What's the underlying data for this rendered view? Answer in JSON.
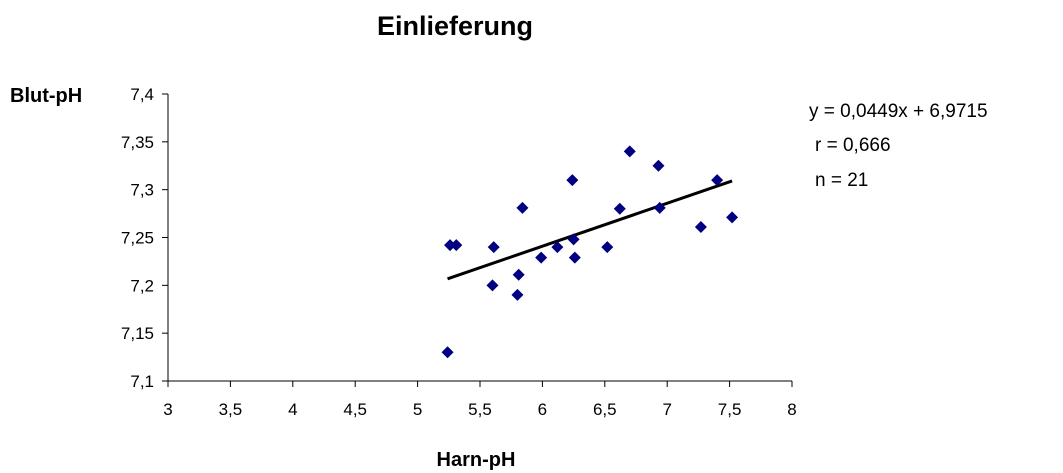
{
  "chart_data": {
    "type": "scatter",
    "title": "Einlieferung",
    "xlabel": "Harn-pH",
    "ylabel": "Blut-pH",
    "xlim": [
      3,
      8
    ],
    "ylim": [
      7.1,
      7.4
    ],
    "x_ticks": [
      "3",
      "3,5",
      "4",
      "4,5",
      "5",
      "5,5",
      "6",
      "6,5",
      "7",
      "7,5",
      "8"
    ],
    "y_ticks": [
      "7,1",
      "7,15",
      "7,2",
      "7,25",
      "7,3",
      "7,35",
      "7,4"
    ],
    "grid": false,
    "legend": "none",
    "marker": "diamond",
    "marker_color": "#000080",
    "series": [
      {
        "points": [
          [
            5.24,
            7.13
          ],
          [
            5.26,
            7.242
          ],
          [
            5.31,
            7.242
          ],
          [
            5.6,
            7.2
          ],
          [
            5.61,
            7.24
          ],
          [
            5.8,
            7.19
          ],
          [
            5.81,
            7.211
          ],
          [
            5.84,
            7.281
          ],
          [
            5.99,
            7.229
          ],
          [
            6.12,
            7.24
          ],
          [
            6.24,
            7.31
          ],
          [
            6.25,
            7.248
          ],
          [
            6.26,
            7.229
          ],
          [
            6.52,
            7.24
          ],
          [
            6.62,
            7.28
          ],
          [
            6.7,
            7.34
          ],
          [
            6.93,
            7.325
          ],
          [
            6.94,
            7.281
          ],
          [
            7.27,
            7.261
          ],
          [
            7.4,
            7.31
          ],
          [
            7.52,
            7.271
          ]
        ]
      }
    ],
    "trendline": {
      "slope": 0.0449,
      "intercept": 6.9715,
      "x_range": [
        5.24,
        7.52
      ],
      "color": "#000000"
    },
    "annotations": [
      "y = 0,0449x + 6,9715",
      "r = 0,666",
      "n = 21"
    ]
  }
}
